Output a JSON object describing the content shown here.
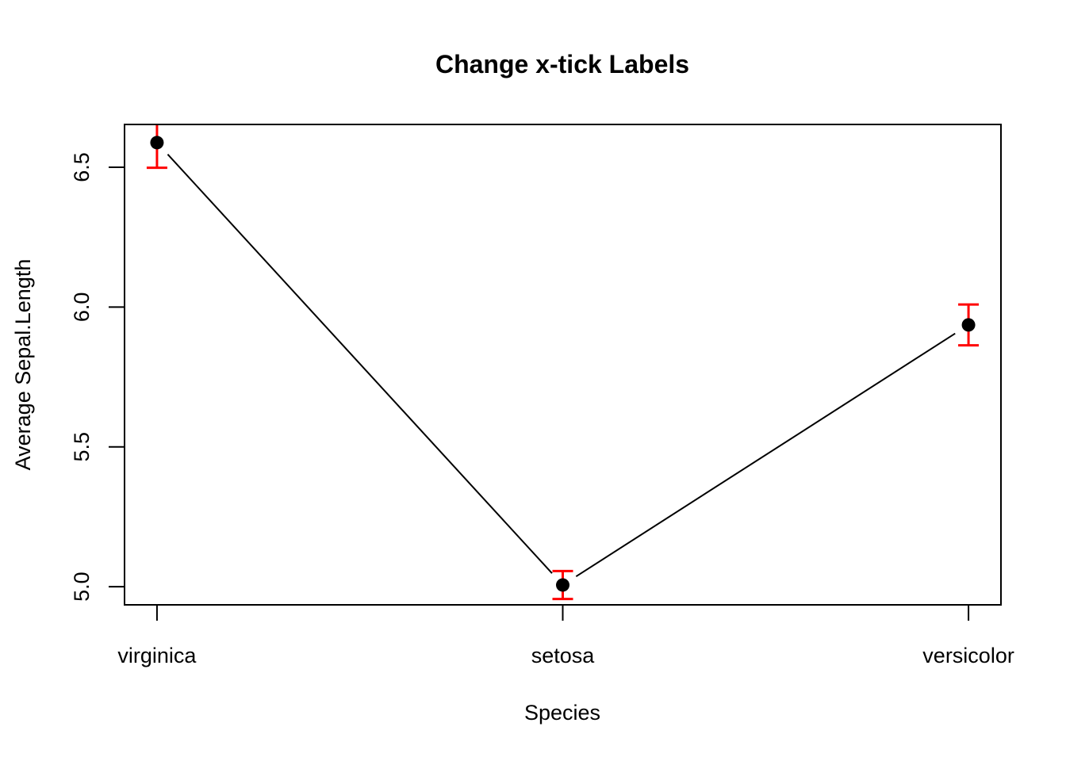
{
  "chart_data": {
    "type": "line",
    "title": "Change x-tick Labels",
    "xlabel": "Species",
    "ylabel": "Average Sepal.Length",
    "categories": [
      "virginica",
      "setosa",
      "versicolor"
    ],
    "x": [
      1,
      2,
      3
    ],
    "values": [
      6.588,
      5.006,
      5.936
    ],
    "std_error": [
      0.09,
      0.05,
      0.073
    ],
    "xlim": [
      0.92,
      3.08
    ],
    "ylim": [
      4.935,
      6.653
    ],
    "yticks": [
      5.0,
      5.5,
      6.0,
      6.5
    ],
    "ytick_labels": [
      "5.0",
      "5.5",
      "6.0",
      "6.5"
    ],
    "marker": "filled-circle",
    "point_color": "#000000",
    "line_color": "#000000",
    "error_bar_color": "#FF0000",
    "background_color": "#FFFFFF",
    "grid": false,
    "legend": "none",
    "error_bars_clipped_to_plot_box": true
  }
}
